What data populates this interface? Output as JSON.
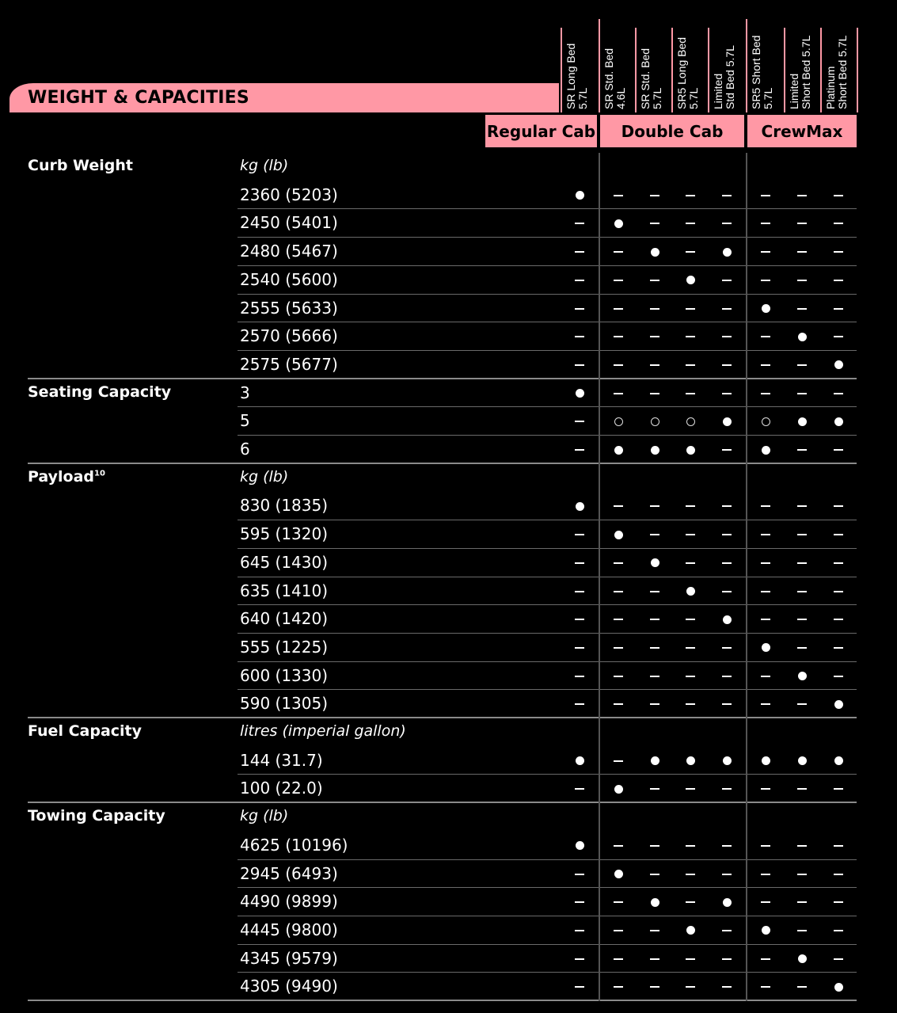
{
  "title": "WEIGHT & CAPACITIES",
  "trims": [
    "SR Long Bed\n5.7L",
    "SR Std. Bed\n4.6L",
    "SR Std. Bed\n5.7L",
    "SR5 Long Bed\n5.7L",
    "Limited\nStd Bed 5.7L",
    "SR5 Short Bed\n5.7L",
    "Limited\nShort Bed 5.7L",
    "Platinum\nShort Bed 5.7L"
  ],
  "cabs": [
    "Regular Cab",
    "Double Cab",
    "CrewMax"
  ],
  "legend_codes": {
    "S": "standard",
    "O": "optional",
    "-": "not available"
  },
  "sections": [
    {
      "name": "Curb Weight",
      "sup": "",
      "unit": "kg (lb)",
      "rows": [
        {
          "value": "2360 (5203)",
          "cells": [
            "S",
            "-",
            "-",
            "-",
            "-",
            "-",
            "-",
            "-"
          ]
        },
        {
          "value": "2450 (5401)",
          "cells": [
            "-",
            "S",
            "-",
            "-",
            "-",
            "-",
            "-",
            "-"
          ]
        },
        {
          "value": "2480 (5467)",
          "cells": [
            "-",
            "-",
            "S",
            "-",
            "S",
            "-",
            "-",
            "-"
          ]
        },
        {
          "value": "2540 (5600)",
          "cells": [
            "-",
            "-",
            "-",
            "S",
            "-",
            "-",
            "-",
            "-"
          ]
        },
        {
          "value": "2555 (5633)",
          "cells": [
            "-",
            "-",
            "-",
            "-",
            "-",
            "S",
            "-",
            "-"
          ]
        },
        {
          "value": "2570 (5666)",
          "cells": [
            "-",
            "-",
            "-",
            "-",
            "-",
            "-",
            "S",
            "-"
          ]
        },
        {
          "value": "2575 (5677)",
          "cells": [
            "-",
            "-",
            "-",
            "-",
            "-",
            "-",
            "-",
            "S"
          ]
        }
      ]
    },
    {
      "name": "Seating Capacity",
      "sup": "",
      "unit": "",
      "rows": [
        {
          "value": "3",
          "cells": [
            "S",
            "-",
            "-",
            "-",
            "-",
            "-",
            "-",
            "-"
          ]
        },
        {
          "value": "5",
          "cells": [
            "-",
            "O",
            "O",
            "O",
            "S",
            "O",
            "S",
            "S"
          ]
        },
        {
          "value": "6",
          "cells": [
            "-",
            "S",
            "S",
            "S",
            "-",
            "S",
            "-",
            "-"
          ]
        }
      ]
    },
    {
      "name": "Payload",
      "sup": "10",
      "unit": "kg (lb)",
      "rows": [
        {
          "value": "830 (1835)",
          "cells": [
            "S",
            "-",
            "-",
            "-",
            "-",
            "-",
            "-",
            "-"
          ]
        },
        {
          "value": "595 (1320)",
          "cells": [
            "-",
            "S",
            "-",
            "-",
            "-",
            "-",
            "-",
            "-"
          ]
        },
        {
          "value": "645 (1430)",
          "cells": [
            "-",
            "-",
            "S",
            "-",
            "-",
            "-",
            "-",
            "-"
          ]
        },
        {
          "value": "635 (1410)",
          "cells": [
            "-",
            "-",
            "-",
            "S",
            "-",
            "-",
            "-",
            "-"
          ]
        },
        {
          "value": "640 (1420)",
          "cells": [
            "-",
            "-",
            "-",
            "-",
            "S",
            "-",
            "-",
            "-"
          ]
        },
        {
          "value": "555 (1225)",
          "cells": [
            "-",
            "-",
            "-",
            "-",
            "-",
            "S",
            "-",
            "-"
          ]
        },
        {
          "value": "600 (1330)",
          "cells": [
            "-",
            "-",
            "-",
            "-",
            "-",
            "-",
            "S",
            "-"
          ]
        },
        {
          "value": "590 (1305)",
          "cells": [
            "-",
            "-",
            "-",
            "-",
            "-",
            "-",
            "-",
            "S"
          ]
        }
      ]
    },
    {
      "name": "Fuel Capacity",
      "sup": "",
      "unit": "litres (imperial gallon)",
      "rows": [
        {
          "value": "144 (31.7)",
          "cells": [
            "S",
            "-",
            "S",
            "S",
            "S",
            "S",
            "S",
            "S"
          ]
        },
        {
          "value": "100 (22.0)",
          "cells": [
            "-",
            "S",
            "-",
            "-",
            "-",
            "-",
            "-",
            "-"
          ]
        }
      ]
    },
    {
      "name": "Towing Capacity",
      "sup": "",
      "unit": "kg (lb)",
      "rows": [
        {
          "value": "4625 (10196)",
          "cells": [
            "S",
            "-",
            "-",
            "-",
            "-",
            "-",
            "-",
            "-"
          ]
        },
        {
          "value": "2945 (6493)",
          "cells": [
            "-",
            "S",
            "-",
            "-",
            "-",
            "-",
            "-",
            "-"
          ]
        },
        {
          "value": "4490 (9899)",
          "cells": [
            "-",
            "-",
            "S",
            "-",
            "S",
            "-",
            "-",
            "-"
          ]
        },
        {
          "value": "4445 (9800)",
          "cells": [
            "-",
            "-",
            "-",
            "S",
            "-",
            "S",
            "-",
            "-"
          ]
        },
        {
          "value": "4345 (9579)",
          "cells": [
            "-",
            "-",
            "-",
            "-",
            "-",
            "-",
            "S",
            "-"
          ]
        },
        {
          "value": "4305 (9490)",
          "cells": [
            "-",
            "-",
            "-",
            "-",
            "-",
            "-",
            "-",
            "S"
          ]
        }
      ]
    }
  ]
}
